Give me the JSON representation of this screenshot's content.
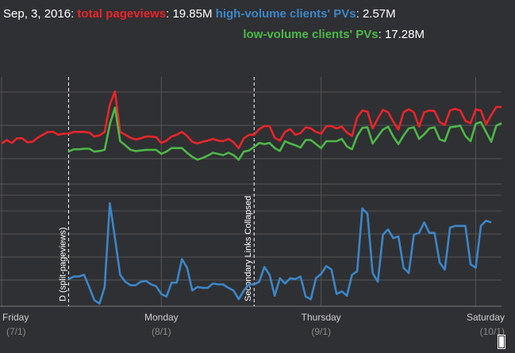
{
  "legend": {
    "date": "Sep, 3, 2016:",
    "total_label": "total pageviews",
    "total_value": ": 19.85M",
    "high_label": "high-volume clients' PVs",
    "high_value": ": 2.57M",
    "low_label": "low-volume clients' PVs",
    "low_value": ": 17.28M"
  },
  "colors": {
    "background": "#2f3033",
    "total": "#e8252a",
    "high": "#3c86c8",
    "low": "#4db848",
    "grid": "#555555",
    "annotation": "#ffffff"
  },
  "chart_data": {
    "type": "line",
    "title": "",
    "xlabel": "",
    "ylabel": "",
    "grid": true,
    "x_ticks": [
      {
        "label": "Friday",
        "sub": "(7/1)",
        "index": 0
      },
      {
        "label": "Monday",
        "sub": "(8/1)",
        "index": 31
      },
      {
        "label": "Thursday",
        "sub": "(9/1)",
        "index": 62
      },
      {
        "label": "Saturday",
        "sub": "(10/1)",
        "index": 92
      }
    ],
    "annotations": [
      {
        "label": "D (split-pageviews)",
        "index": 13
      },
      {
        "label": "Secondary Links Collapsed",
        "index": 49
      }
    ],
    "series": [
      {
        "name": "total pageviews",
        "color": "#e8252a",
        "values": [
          32.0,
          32.6,
          32.1,
          32.9,
          32.9,
          32.2,
          32.3,
          33.0,
          33.5,
          34.0,
          34.0,
          33.5,
          33.7,
          33.7,
          34.0,
          34.0,
          34.0,
          33.9,
          33.2,
          33.4,
          34.0,
          38.7,
          41.0,
          34.0,
          33.5,
          33.0,
          32.7,
          32.9,
          33.2,
          33.2,
          33.1,
          32.1,
          32.5,
          33.2,
          33.5,
          34.0,
          33.3,
          32.3,
          32.0,
          32.3,
          32.5,
          32.8,
          32.5,
          32.4,
          32.8,
          32.2,
          31.2,
          32.9,
          33.5,
          33.5,
          34.5,
          35.0,
          35.0,
          33.0,
          32.5,
          34.0,
          34.5,
          33.5,
          33.8,
          34.8,
          34.6,
          34.0,
          33.7,
          35.0,
          35.0,
          34.6,
          34.9,
          33.9,
          33.3,
          36.5,
          37.7,
          37.5,
          34.6,
          36.3,
          37.8,
          37.4,
          35.8,
          34.4,
          37.4,
          37.9,
          37.4,
          34.9,
          37.4,
          37.7,
          37.6,
          35.7,
          35.2,
          37.7,
          38.0,
          37.7,
          35.9,
          35.5,
          37.9,
          37.7,
          35.3,
          36.9,
          38.3,
          38.3
        ]
      },
      {
        "name": "low-volume clients' PVs",
        "color": "#4db848",
        "values": [
          null,
          null,
          null,
          null,
          null,
          null,
          null,
          null,
          null,
          null,
          null,
          null,
          null,
          30.6,
          31.0,
          31.0,
          31.1,
          31.1,
          30.6,
          30.7,
          30.9,
          35.3,
          38.2,
          32.4,
          31.7,
          30.9,
          30.7,
          30.8,
          30.9,
          30.9,
          30.9,
          30.2,
          30.6,
          31.2,
          31.2,
          31.2,
          30.4,
          29.7,
          29.2,
          29.5,
          29.9,
          30.4,
          30.2,
          30.0,
          30.4,
          30.0,
          29.2,
          30.6,
          30.8,
          31.4,
          32.1,
          31.9,
          32.1,
          31.2,
          30.7,
          32.4,
          32.0,
          31.7,
          31.3,
          32.6,
          32.6,
          31.9,
          31.2,
          32.4,
          32.4,
          32.4,
          32.8,
          31.5,
          31.0,
          33.3,
          34.7,
          34.8,
          32.0,
          33.2,
          34.4,
          34.9,
          33.2,
          31.9,
          33.4,
          34.6,
          34.8,
          32.8,
          33.6,
          34.6,
          34.8,
          32.7,
          32.4,
          34.8,
          34.9,
          35.1,
          33.3,
          32.4,
          35.4,
          35.7,
          34.0,
          32.3,
          35.1,
          35.5
        ]
      },
      {
        "name": "high-volume clients' PVs",
        "color": "#3c86c8",
        "values": [
          null,
          null,
          null,
          null,
          null,
          null,
          null,
          null,
          null,
          null,
          null,
          null,
          null,
          1.55,
          1.7,
          1.7,
          1.8,
          1.1,
          0.35,
          0.15,
          1.1,
          5.9,
          3.9,
          1.8,
          1.4,
          1.2,
          1.2,
          1.4,
          1.45,
          1.25,
          1.15,
          0.7,
          0.55,
          1.35,
          1.35,
          2.7,
          2.2,
          0.9,
          1.1,
          1.05,
          1.05,
          1.3,
          1.25,
          1.25,
          1.05,
          0.9,
          0.4,
          0.9,
          1.25,
          1.25,
          1.4,
          2.25,
          1.8,
          0.6,
          1.6,
          1.3,
          1.6,
          1.55,
          1.7,
          0.55,
          0.4,
          1.6,
          1.85,
          2.3,
          2.1,
          0.7,
          0.85,
          0.6,
          1.8,
          2.0,
          5.6,
          5.3,
          1.9,
          1.4,
          4.1,
          4.4,
          3.9,
          4.0,
          2.2,
          1.9,
          4.1,
          4.2,
          4.8,
          4.2,
          4.2,
          2.5,
          2.1,
          4.5,
          4.6,
          4.6,
          4.6,
          2.4,
          2.2,
          4.6,
          4.9,
          4.8
        ]
      }
    ]
  }
}
